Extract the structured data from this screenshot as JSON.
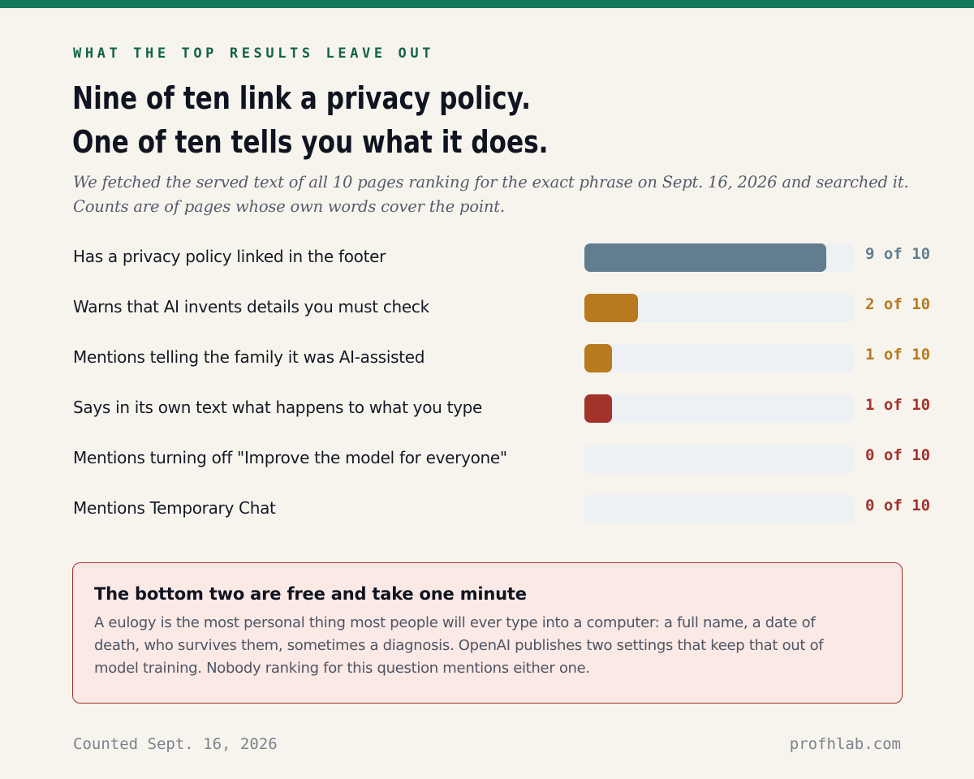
{
  "kicker": "WHAT THE TOP RESULTS LEAVE OUT",
  "headline": {
    "line1": "Nine of ten link a privacy policy.",
    "line2": "One of ten tells you what it does."
  },
  "subtitle": {
    "line1": "We fetched the served text of all 10 pages ranking for the exact phrase on Sept. 16, 2026 and searched it.",
    "line2": "Counts are of pages whose own words cover the point."
  },
  "chart_data": {
    "type": "bar",
    "orientation": "horizontal",
    "total": 10,
    "categories": [
      "Has a privacy policy linked in the footer",
      "Warns that AI invents details you must check",
      "Mentions telling the family it was AI-assisted",
      "Says in its own text what happens to what you type",
      "Mentions turning off \"Improve the model for everyone\"",
      "Mentions Temporary Chat"
    ],
    "values": [
      9,
      2,
      1,
      1,
      0,
      0
    ],
    "value_labels": [
      "9 of 10",
      "2 of 10",
      "1 of 10",
      "1 of 10",
      "0 of 10",
      "0 of 10"
    ],
    "colors": [
      "#627e8e",
      "#b77a1f",
      "#b77a1f",
      "#a3322b",
      "#a3322b",
      "#a3322b"
    ],
    "xlim": [
      0,
      10
    ],
    "grid": false,
    "legend": "none"
  },
  "callout": {
    "title": "The bottom two are free and take one minute",
    "body_lines": [
      "A eulogy is the most personal thing most people will ever type into a computer: a full name, a date of",
      "death, who survives them, sometimes a diagnosis. OpenAI publishes two settings that keep that out of",
      "model training. Nobody ranking for this question mentions either one."
    ]
  },
  "footer": {
    "left": "Counted Sept. 16, 2026",
    "right": "profhlab.com"
  },
  "colors": {
    "accent": "#137a5b",
    "track": "#edf0f4",
    "callout_border": "#a0332c",
    "callout_bg": "#fbe9e6"
  }
}
